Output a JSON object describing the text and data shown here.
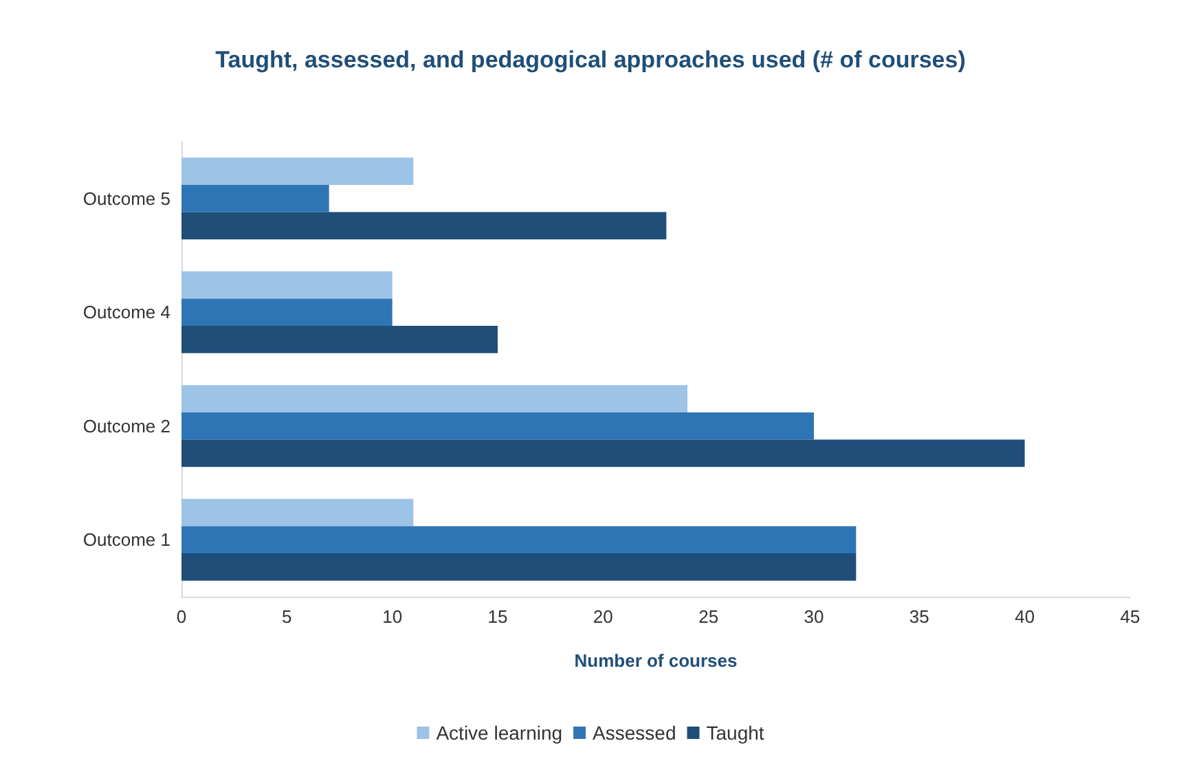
{
  "chart_data": {
    "type": "bar",
    "orientation": "horizontal",
    "title": "Taught, assessed, and pedagogical approaches used (# of courses)",
    "xlabel": "Number of courses",
    "categories": [
      "Outcome 5",
      "Outcome 4",
      "Outcome 2",
      "Outcome 1"
    ],
    "series": [
      {
        "name": "Active learning",
        "color": "#9dc3e6",
        "values": [
          11,
          10,
          24,
          11
        ]
      },
      {
        "name": "Assessed",
        "color": "#2e75b6",
        "values": [
          7,
          10,
          30,
          32
        ]
      },
      {
        "name": "Taught",
        "color": "#1f4e79",
        "values": [
          23,
          15,
          40,
          32
        ]
      }
    ],
    "xlim": [
      0,
      45
    ],
    "xticks": [
      0,
      5,
      10,
      15,
      20,
      25,
      30,
      35,
      40,
      45
    ],
    "grid": false,
    "legend": "bottom"
  }
}
